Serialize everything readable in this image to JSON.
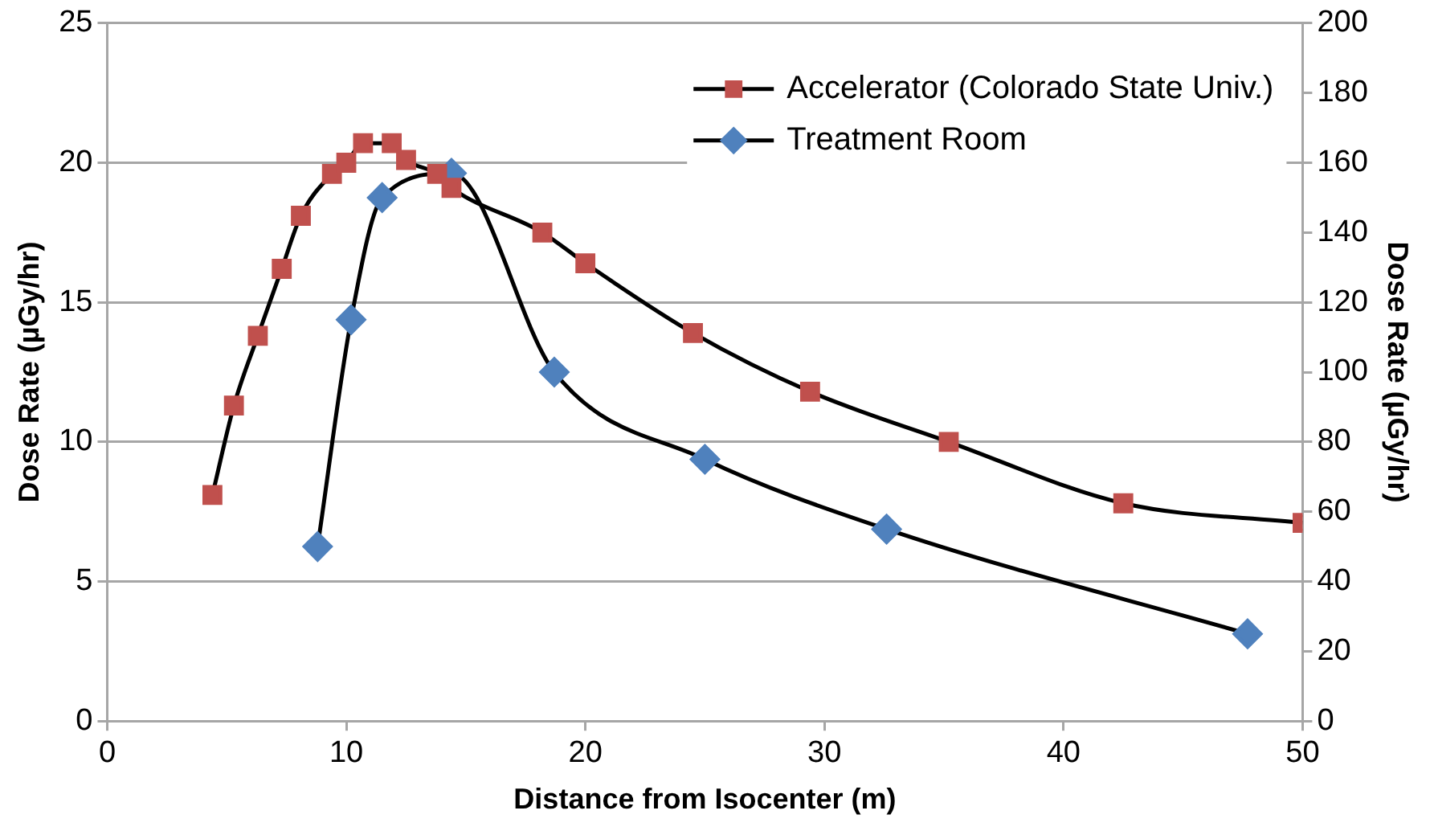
{
  "chart_data": {
    "type": "line",
    "xlabel": "Distance from Isocenter (m)",
    "ylabel": "Dose Rate (µGy/hr)",
    "y2label": "Dose Rate (µGy/hr)",
    "xlim": [
      0,
      50
    ],
    "xticks": [
      0,
      10,
      20,
      30,
      40,
      50
    ],
    "ylim": [
      0,
      25
    ],
    "yticks": [
      0,
      5,
      10,
      15,
      20,
      25
    ],
    "y2lim": [
      0,
      200
    ],
    "y2ticks": [
      0,
      20,
      40,
      60,
      80,
      100,
      120,
      140,
      160,
      180,
      200
    ],
    "grid": "y",
    "legend": "top right",
    "series": [
      {
        "name": "Accelerator (Colorado State Univ.)",
        "color": "#c0504d",
        "marker": "square",
        "x": [
          4.4,
          5.3,
          6.3,
          7.3,
          8.1,
          9.4,
          10.0,
          10.7,
          11.9,
          12.5,
          13.8,
          14.4,
          18.2,
          20.0,
          24.5,
          29.4,
          35.2,
          42.5,
          50
        ],
        "values": [
          8.1,
          11.3,
          13.8,
          16.2,
          18.1,
          19.6,
          20.0,
          20.7,
          20.7,
          20.1,
          19.6,
          19.1,
          17.5,
          16.4,
          13.9,
          11.8,
          10.0,
          7.8,
          7.1
        ]
      },
      {
        "name": "Treatment Room",
        "color": "#4f81bd",
        "marker": "diamond",
        "axis": "y2",
        "x": [
          8.8,
          10.2,
          11.5,
          14.4,
          18.7,
          25.0,
          32.6,
          47.7
        ],
        "values": [
          50,
          115,
          150,
          157,
          100,
          75,
          55,
          25
        ]
      }
    ]
  }
}
